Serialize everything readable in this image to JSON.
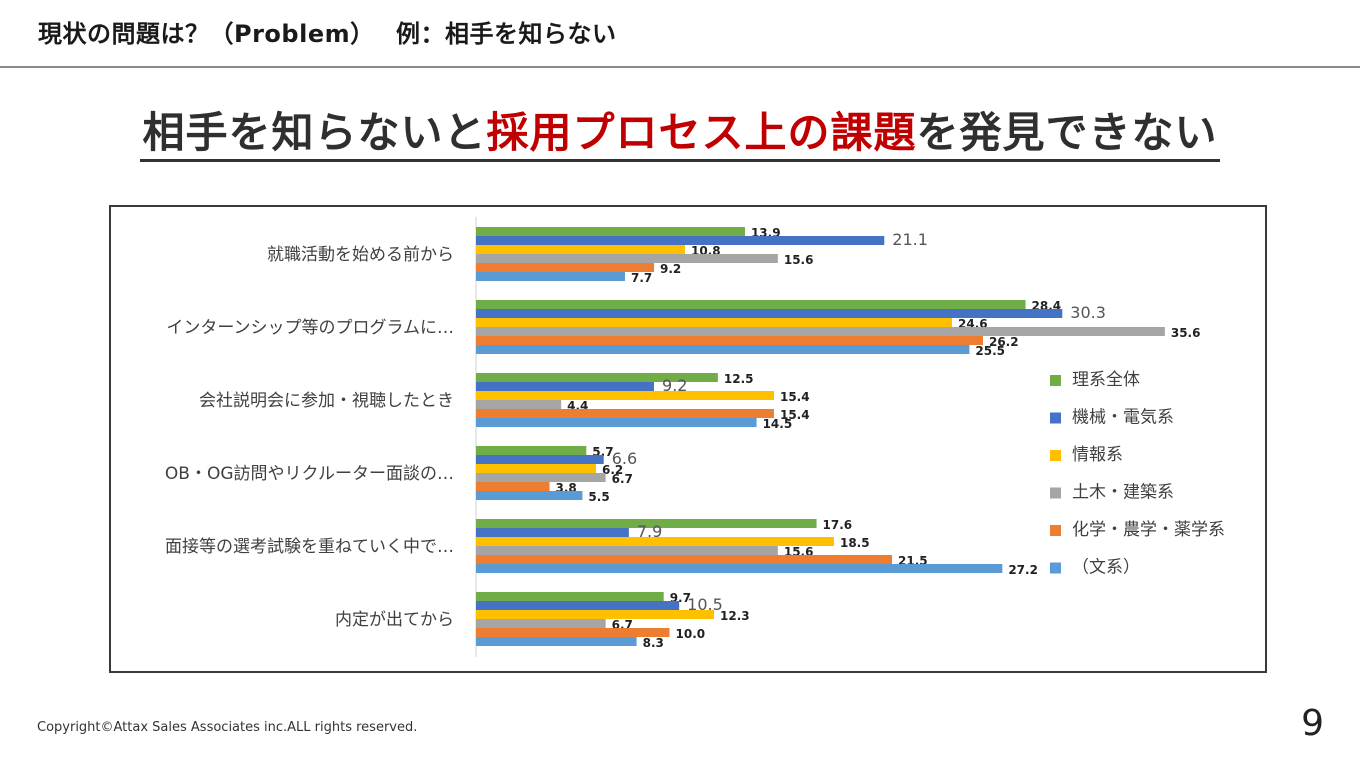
{
  "header": {
    "title": "現状の問題は？（Problem）　 例：相手を知らない"
  },
  "headline": {
    "part1": "相手を知らないと",
    "part2": "採用プロセス上の課題",
    "part3": "を発見できない",
    "red_color": "#c00000"
  },
  "footer": {
    "copyright": "Copyright©Attax Sales Associates inc.ALL rights reserved.",
    "page_number": "9"
  },
  "chart_data": {
    "type": "bar",
    "orientation": "horizontal",
    "categories": [
      "就職活動を始める前から",
      "インターンシップ等のプログラムに…",
      "会社説明会に参加・視聴したとき",
      "OB・OG訪問やリクルーター面談の…",
      "面接等の選考試験を重ねていく中で…",
      "内定が出てから"
    ],
    "series": [
      {
        "name": "理系全体",
        "color": "#70ad47",
        "values": [
          13.9,
          28.4,
          12.5,
          5.7,
          17.6,
          9.7
        ]
      },
      {
        "name": "機械・電気系",
        "color": "#4472c4",
        "values": [
          21.1,
          30.3,
          9.2,
          6.6,
          7.9,
          10.5
        ]
      },
      {
        "name": "情報系",
        "color": "#ffc000",
        "values": [
          10.8,
          24.6,
          15.4,
          6.2,
          18.5,
          12.3
        ]
      },
      {
        "name": "土木・建築系",
        "color": "#a5a5a5",
        "values": [
          15.6,
          35.6,
          4.4,
          6.7,
          15.6,
          6.7
        ]
      },
      {
        "name": "化学・農学・薬学系",
        "color": "#ed7d31",
        "values": [
          9.2,
          26.2,
          15.4,
          3.8,
          21.5,
          10.0
        ]
      },
      {
        "name": "（文系）",
        "color": "#5b9bd5",
        "values": [
          7.7,
          25.5,
          14.5,
          5.5,
          27.2,
          8.3
        ]
      }
    ],
    "value_labels": [
      [
        "13.9",
        "21.1",
        "10.8",
        "15.6",
        "9.2",
        "7.7"
      ],
      [
        "28.4",
        "30.3",
        "24.6",
        "35.6",
        "26.2",
        "25.5"
      ],
      [
        "12.5",
        "9.2",
        "15.4",
        "4.4",
        "15.4",
        "14.5"
      ],
      [
        "5.7",
        "6.6",
        "6.2",
        "6.7",
        "3.8",
        "5.5"
      ],
      [
        "17.6",
        "7.9",
        "18.5",
        "15.6",
        "21.5",
        "27.2"
      ],
      [
        "9.7",
        "10.5",
        "12.3",
        "6.7",
        "10.0",
        "8.3"
      ]
    ],
    "title": "",
    "xlabel": "",
    "ylabel": "",
    "xlim": [
      0,
      40
    ],
    "grid": false,
    "legend_position": "right"
  }
}
